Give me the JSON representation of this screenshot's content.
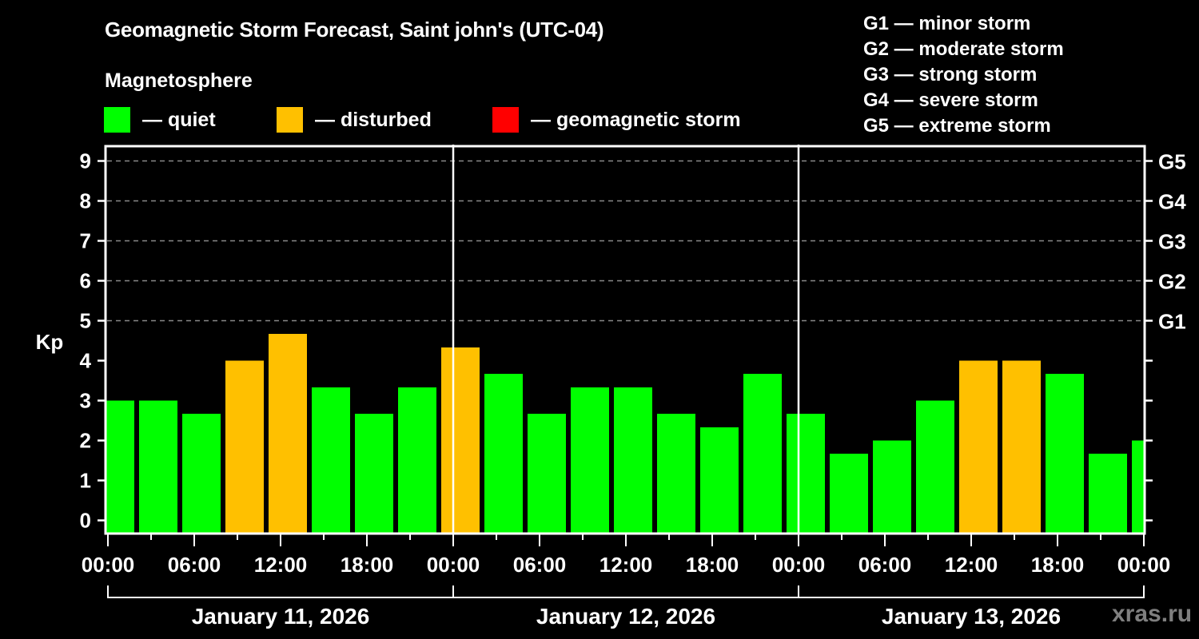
{
  "header": {
    "title": "Geomagnetic Storm Forecast, Saint john's (UTC-04)",
    "subtitle": "Magnetosphere"
  },
  "legend": [
    {
      "label": "— quiet",
      "color": "#00ff00"
    },
    {
      "label": "— disturbed",
      "color": "#ffc000"
    },
    {
      "label": "— geomagnetic storm",
      "color": "#ff0000"
    }
  ],
  "storm_scale": [
    {
      "label": "G1 — minor storm"
    },
    {
      "label": "G2 — moderate storm"
    },
    {
      "label": "G3 — strong storm"
    },
    {
      "label": "G4 — severe storm"
    },
    {
      "label": "G5 — extreme storm"
    }
  ],
  "watermark": "xras.ru",
  "chart_data": {
    "type": "bar",
    "title": "Geomagnetic Storm Forecast, Saint john's (UTC-04)",
    "xlabel": "",
    "ylabel": "Kp",
    "ylim": [
      0,
      9
    ],
    "yticks": [
      0,
      1,
      2,
      3,
      4,
      5,
      6,
      7,
      8,
      9
    ],
    "right_axis_labels": [
      {
        "kp": 5,
        "label": "G1"
      },
      {
        "kp": 6,
        "label": "G2"
      },
      {
        "kp": 7,
        "label": "G3"
      },
      {
        "kp": 8,
        "label": "G4"
      },
      {
        "kp": 9,
        "label": "G5"
      }
    ],
    "grid": "dashed horizontal at Kp 5-9",
    "xtick_labels": [
      "00:00",
      "06:00",
      "12:00",
      "18:00",
      "00:00",
      "06:00",
      "12:00",
      "18:00",
      "00:00",
      "06:00",
      "12:00",
      "18:00",
      "00:00"
    ],
    "days": [
      "January 11, 2026",
      "January 12, 2026",
      "January 13, 2026"
    ],
    "bar_interval_hours": 3,
    "categories": [
      "Jan 11 00:00-03:00",
      "Jan 11 03:00-06:00",
      "Jan 11 06:00-09:00",
      "Jan 11 09:00-12:00",
      "Jan 11 12:00-15:00",
      "Jan 11 15:00-18:00",
      "Jan 11 18:00-21:00",
      "Jan 11 21:00-24:00",
      "Jan 12 00:00-03:00",
      "Jan 12 03:00-06:00",
      "Jan 12 06:00-09:00",
      "Jan 12 09:00-12:00",
      "Jan 12 12:00-15:00",
      "Jan 12 15:00-18:00",
      "Jan 12 18:00-21:00",
      "Jan 12 21:00-24:00",
      "Jan 13 00:00-03:00",
      "Jan 13 03:00-06:00",
      "Jan 13 06:00-09:00",
      "Jan 13 09:00-12:00",
      "Jan 13 12:00-15:00",
      "Jan 13 15:00-18:00",
      "Jan 13 18:00-21:00",
      "Jan 13 21:00-24:00",
      "Jan 14 00:00-03:00"
    ],
    "values": [
      3.0,
      3.0,
      2.67,
      4.0,
      4.67,
      3.33,
      2.67,
      3.33,
      4.33,
      3.67,
      2.67,
      3.33,
      3.33,
      2.67,
      2.33,
      3.67,
      2.67,
      1.67,
      2.0,
      3.0,
      4.0,
      4.0,
      3.67,
      1.67,
      2.0
    ],
    "status": [
      "quiet",
      "quiet",
      "quiet",
      "disturbed",
      "disturbed",
      "quiet",
      "quiet",
      "quiet",
      "disturbed",
      "quiet",
      "quiet",
      "quiet",
      "quiet",
      "quiet",
      "quiet",
      "quiet",
      "quiet",
      "quiet",
      "quiet",
      "quiet",
      "disturbed",
      "disturbed",
      "quiet",
      "quiet",
      "quiet"
    ],
    "status_colors": {
      "quiet": "#00ff00",
      "disturbed": "#ffc000",
      "storm": "#ff0000"
    }
  }
}
